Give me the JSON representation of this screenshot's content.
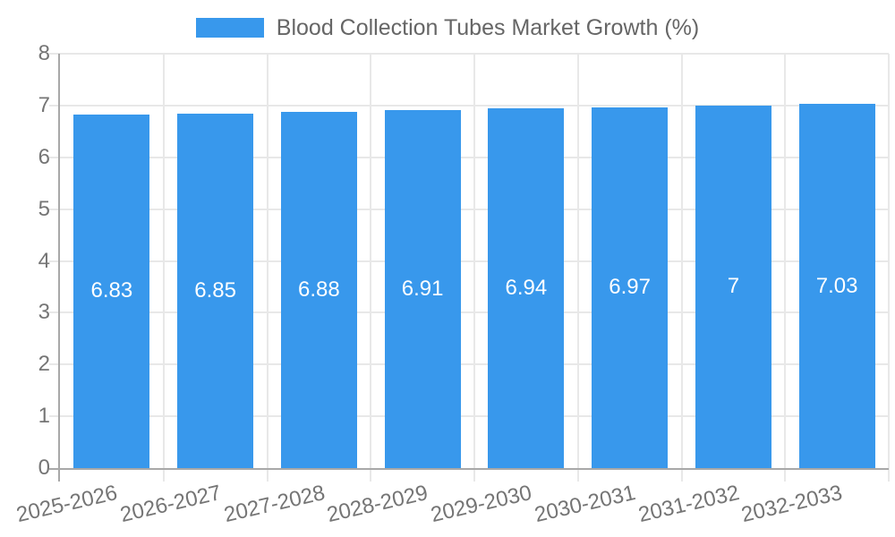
{
  "chart_data": {
    "type": "bar",
    "title": "Blood Collection Tubes Market Growth (%)",
    "legend": [
      {
        "label": "Blood Collection Tubes Market Growth (%)"
      }
    ],
    "legend_position": "top-center",
    "categories": [
      "2025-2026",
      "2026-2027",
      "2027-2028",
      "2028-2029",
      "2029-2030",
      "2030-2031",
      "2031-2032",
      "2032-2033"
    ],
    "values": [
      6.83,
      6.85,
      6.88,
      6.91,
      6.94,
      6.97,
      7,
      7.03
    ],
    "value_labels": [
      "6.83",
      "6.85",
      "6.88",
      "6.91",
      "6.94",
      "6.97",
      "7",
      "7.03"
    ],
    "xlabel": "",
    "ylabel": "",
    "ylim": [
      0,
      8
    ],
    "yticks": [
      0,
      1,
      2,
      3,
      4,
      5,
      6,
      7,
      8
    ],
    "grid": "on",
    "x_tick_rotation_deg": -13
  },
  "colors": {
    "bar": "#3898ec",
    "value_label": "#ffffff",
    "gridline": "#e8e8e8",
    "axis_line": "#a8a8a8",
    "tick_label": "#757575",
    "title_text": "#666666",
    "background": "#ffffff"
  }
}
